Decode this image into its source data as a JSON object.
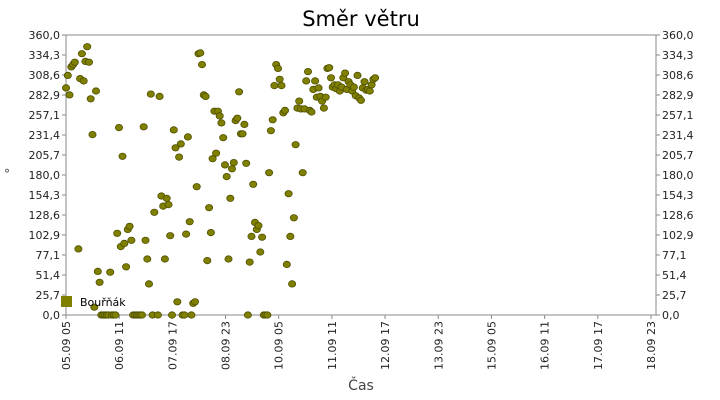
{
  "chart_data": {
    "type": "scatter",
    "title": "Směr větru",
    "xlabel": "Čas",
    "ylabel": "°",
    "ylim": [
      0,
      360
    ],
    "y_ticks": [
      "0,0",
      "25,7",
      "51,4",
      "77,1",
      "102,9",
      "128,6",
      "154,3",
      "180,0",
      "205,7",
      "231,4",
      "257,1",
      "282,9",
      "308,6",
      "334,3",
      "360,0"
    ],
    "x_ticks": [
      "05.09 05",
      "06.09 11",
      "07.09 17",
      "08.09 23",
      "10.09 05",
      "11.09 11",
      "12.09 17",
      "13.09 23",
      "15.09 05",
      "16.09 11",
      "17.09 17",
      "18.09 23"
    ],
    "xlim": [
      0,
      334
    ],
    "x_unit": "hours since 05.09 05",
    "grid": false,
    "legend_position": "bottom-left",
    "color": "#808000",
    "series": [
      {
        "name": "Bouřňák",
        "points": [
          [
            0,
            292
          ],
          [
            1,
            308
          ],
          [
            2,
            283
          ],
          [
            3,
            319
          ],
          [
            4,
            322
          ],
          [
            5,
            325
          ],
          [
            7,
            85
          ],
          [
            8,
            304
          ],
          [
            9,
            336
          ],
          [
            10,
            301
          ],
          [
            11,
            326
          ],
          [
            12,
            345
          ],
          [
            13,
            325
          ],
          [
            14,
            278
          ],
          [
            15,
            232
          ],
          [
            16,
            10
          ],
          [
            17,
            288
          ],
          [
            18,
            56
          ],
          [
            19,
            42
          ],
          [
            20,
            0
          ],
          [
            21,
            0
          ],
          [
            22,
            0
          ],
          [
            23,
            0
          ],
          [
            24,
            0
          ],
          [
            25,
            55
          ],
          [
            26,
            0
          ],
          [
            27,
            0
          ],
          [
            28,
            0
          ],
          [
            29,
            105
          ],
          [
            30,
            241
          ],
          [
            31,
            88
          ],
          [
            32,
            204
          ],
          [
            33,
            92
          ],
          [
            34,
            62
          ],
          [
            35,
            110
          ],
          [
            36,
            114
          ],
          [
            37,
            96
          ],
          [
            38,
            0
          ],
          [
            39,
            0
          ],
          [
            40,
            0
          ],
          [
            41,
            0
          ],
          [
            42,
            0
          ],
          [
            43,
            0
          ],
          [
            44,
            242
          ],
          [
            45,
            96
          ],
          [
            46,
            72
          ],
          [
            47,
            40
          ],
          [
            48,
            284
          ],
          [
            49,
            0
          ],
          [
            50,
            132
          ],
          [
            52,
            0
          ],
          [
            53,
            281
          ],
          [
            54,
            153
          ],
          [
            55,
            140
          ],
          [
            56,
            72
          ],
          [
            57,
            150
          ],
          [
            58,
            142
          ],
          [
            59,
            102
          ],
          [
            60,
            0
          ],
          [
            61,
            238
          ],
          [
            62,
            215
          ],
          [
            63,
            17
          ],
          [
            64,
            203
          ],
          [
            65,
            220
          ],
          [
            66,
            0
          ],
          [
            67,
            0
          ],
          [
            68,
            104
          ],
          [
            69,
            229
          ],
          [
            70,
            120
          ],
          [
            71,
            0
          ],
          [
            72,
            15
          ],
          [
            73,
            17
          ],
          [
            74,
            165
          ],
          [
            75,
            336
          ],
          [
            76,
            337
          ],
          [
            77,
            322
          ],
          [
            78,
            283
          ],
          [
            79,
            281
          ],
          [
            80,
            70
          ],
          [
            81,
            138
          ],
          [
            82,
            106
          ],
          [
            83,
            201
          ],
          [
            84,
            262
          ],
          [
            85,
            208
          ],
          [
            86,
            262
          ],
          [
            87,
            256
          ],
          [
            88,
            247
          ],
          [
            89,
            228
          ],
          [
            90,
            193
          ],
          [
            91,
            178
          ],
          [
            92,
            72
          ],
          [
            93,
            150
          ],
          [
            94,
            188
          ],
          [
            95,
            196
          ],
          [
            96,
            250
          ],
          [
            97,
            253
          ],
          [
            98,
            287
          ],
          [
            99,
            233
          ],
          [
            100,
            233
          ],
          [
            101,
            245
          ],
          [
            102,
            195
          ],
          [
            103,
            0
          ],
          [
            104,
            68
          ],
          [
            105,
            101
          ],
          [
            106,
            168
          ],
          [
            107,
            119
          ],
          [
            108,
            110
          ],
          [
            109,
            115
          ],
          [
            110,
            81
          ],
          [
            111,
            100
          ],
          [
            112,
            0
          ],
          [
            113,
            0
          ],
          [
            114,
            0
          ],
          [
            115,
            183
          ],
          [
            116,
            237
          ],
          [
            117,
            251
          ],
          [
            118,
            295
          ],
          [
            119,
            322
          ],
          [
            120,
            317
          ],
          [
            121,
            303
          ],
          [
            122,
            295
          ],
          [
            123,
            260
          ],
          [
            124,
            263
          ],
          [
            125,
            65
          ],
          [
            126,
            156
          ],
          [
            127,
            101
          ],
          [
            128,
            40
          ],
          [
            129,
            125
          ],
          [
            130,
            219
          ],
          [
            131,
            266
          ],
          [
            132,
            275
          ],
          [
            133,
            265
          ],
          [
            134,
            183
          ],
          [
            135,
            265
          ],
          [
            136,
            301
          ],
          [
            137,
            313
          ],
          [
            138,
            263
          ],
          [
            139,
            261
          ],
          [
            140,
            290
          ],
          [
            141,
            301
          ],
          [
            142,
            280
          ],
          [
            143,
            292
          ],
          [
            144,
            281
          ],
          [
            145,
            275
          ],
          [
            146,
            266
          ],
          [
            147,
            280
          ],
          [
            148,
            317
          ],
          [
            149,
            318
          ],
          [
            150,
            305
          ],
          [
            151,
            293
          ],
          [
            152,
            296
          ],
          [
            153,
            291
          ],
          [
            154,
            296
          ],
          [
            155,
            288
          ],
          [
            156,
            293
          ],
          [
            157,
            305
          ],
          [
            158,
            311
          ],
          [
            159,
            290
          ],
          [
            160,
            300
          ],
          [
            161,
            296
          ],
          [
            162,
            288
          ],
          [
            163,
            293
          ],
          [
            164,
            282
          ],
          [
            165,
            308
          ],
          [
            166,
            279
          ],
          [
            167,
            276
          ],
          [
            168,
            292
          ],
          [
            169,
            300
          ],
          [
            170,
            289
          ],
          [
            171,
            290
          ],
          [
            172,
            288
          ],
          [
            173,
            296
          ],
          [
            174,
            303
          ],
          [
            175,
            305
          ]
        ]
      }
    ]
  }
}
